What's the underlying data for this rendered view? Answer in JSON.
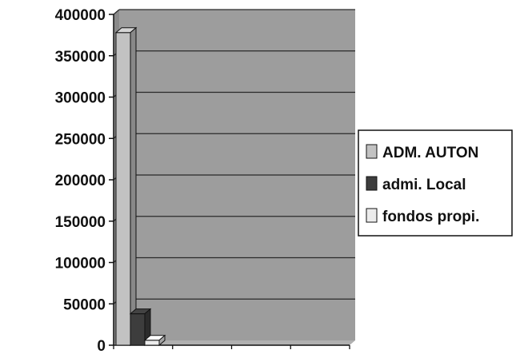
{
  "chart_data": {
    "type": "bar",
    "subtype": "3d-clustered-column",
    "title": "",
    "xlabel": "",
    "ylabel": "",
    "ylim": [
      0,
      400000
    ],
    "yticks": [
      0,
      50000,
      100000,
      150000,
      200000,
      250000,
      300000,
      350000,
      400000
    ],
    "ytick_labels": [
      "0",
      "50000",
      "100000",
      "150000",
      "200000",
      "250000",
      "300000",
      "350000",
      "400000"
    ],
    "categories": [
      "",
      "",
      "",
      ""
    ],
    "series": [
      {
        "name": "ADM. AUTON",
        "color": "#c2c2c2",
        "values": [
          378000,
          null,
          null,
          null
        ]
      },
      {
        "name": "admi. Local",
        "color": "#3d3d3d",
        "values": [
          38000,
          null,
          null,
          null
        ]
      },
      {
        "name": "fondos propi.",
        "color": "#ececec",
        "values": [
          6000,
          null,
          null,
          null
        ]
      }
    ],
    "grid": true,
    "legend": "right",
    "plot_background": "#9d9d9d",
    "gridline_color": "#2a2a2a"
  }
}
